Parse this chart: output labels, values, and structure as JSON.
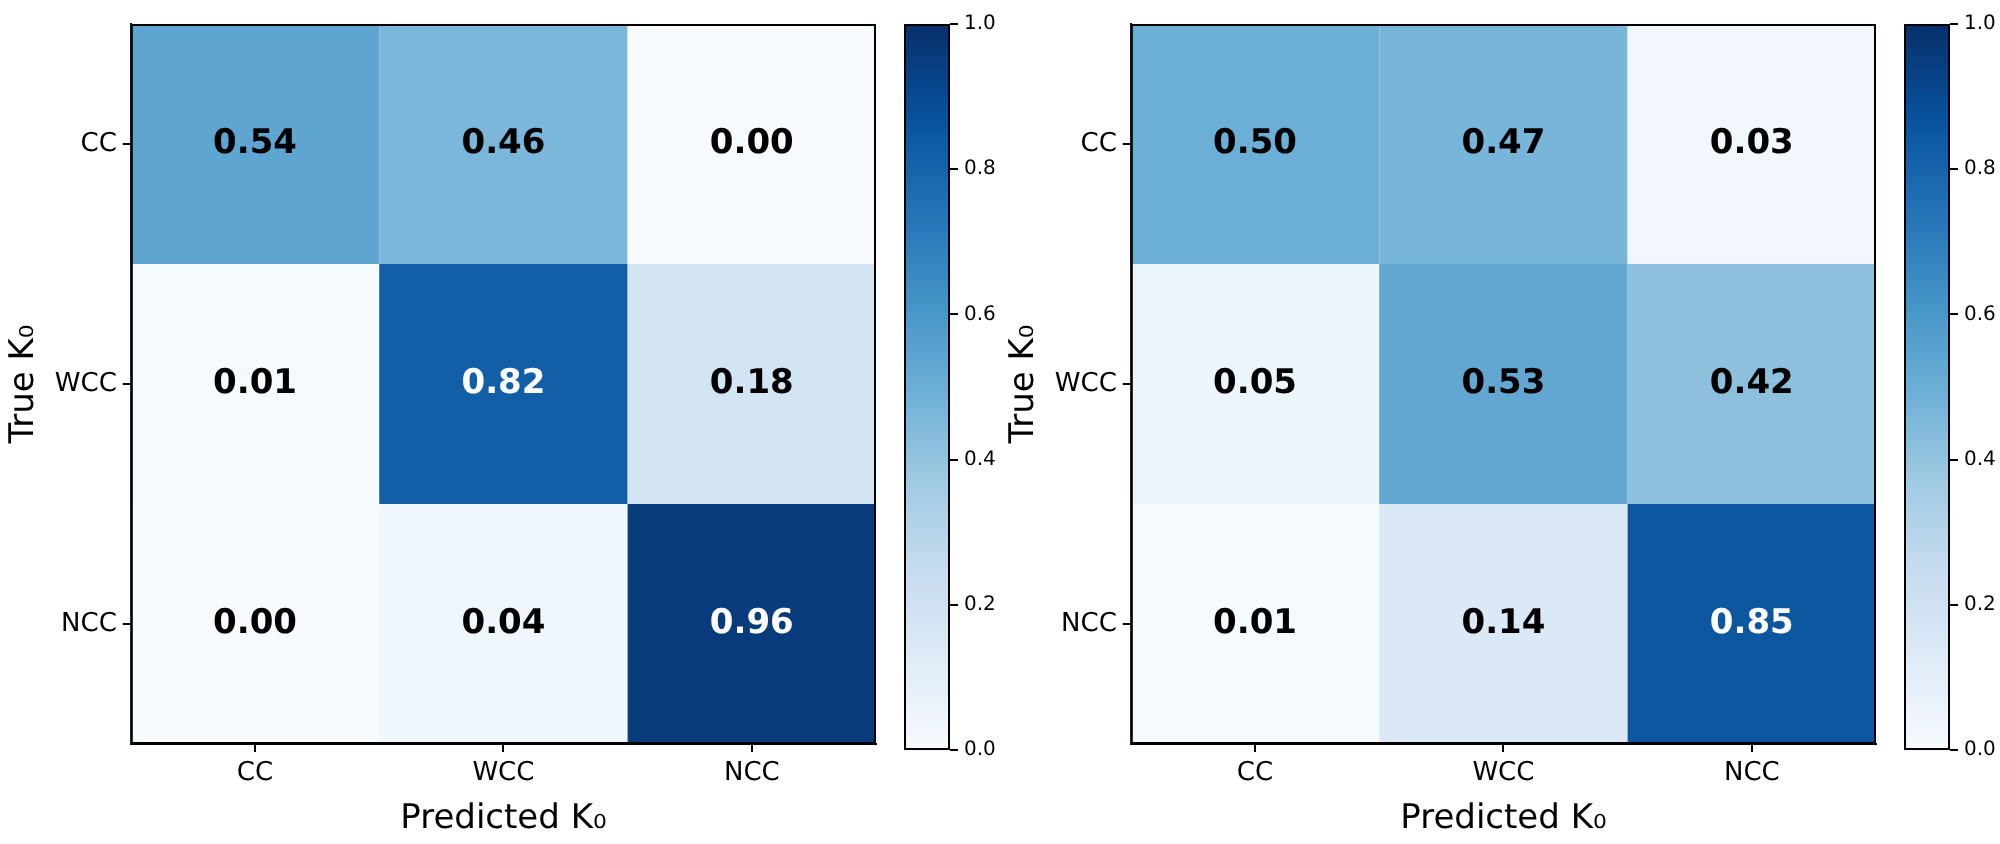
{
  "chart_data": [
    {
      "type": "heatmap",
      "xlabel": "Predicted K₀",
      "ylabel": "True K₀",
      "categories": [
        "CC",
        "WCC",
        "NCC"
      ],
      "y_categories": [
        "CC",
        "WCC",
        "NCC"
      ],
      "cells": [
        [
          0.54,
          0.46,
          0.0
        ],
        [
          0.01,
          0.82,
          0.18
        ],
        [
          0.0,
          0.04,
          0.96
        ]
      ],
      "cell_labels": [
        [
          "0.54",
          "0.46",
          "0.00"
        ],
        [
          "0.01",
          "0.82",
          "0.18"
        ],
        [
          "0.00",
          "0.04",
          "0.96"
        ]
      ],
      "clim": [
        0,
        1
      ],
      "cticks": [
        {
          "value": 0,
          "label": "0.0"
        },
        {
          "value": 0.2,
          "label": "0.2"
        },
        {
          "value": 0.4,
          "label": "0.4"
        },
        {
          "value": 0.6,
          "label": "0.6"
        },
        {
          "value": 0.8,
          "label": "0.8"
        },
        {
          "value": 1,
          "label": "1.0"
        }
      ]
    },
    {
      "type": "heatmap",
      "xlabel": "Predicted K₀",
      "ylabel": "True K₀",
      "categories": [
        "CC",
        "WCC",
        "NCC"
      ],
      "y_categories": [
        "CC",
        "WCC",
        "NCC"
      ],
      "cells": [
        [
          0.5,
          0.47,
          0.03
        ],
        [
          0.05,
          0.53,
          0.42
        ],
        [
          0.01,
          0.14,
          0.85
        ]
      ],
      "cell_labels": [
        [
          "0.50",
          "0.47",
          "0.03"
        ],
        [
          "0.05",
          "0.53",
          "0.42"
        ],
        [
          "0.01",
          "0.14",
          "0.85"
        ]
      ],
      "clim": [
        0,
        1
      ],
      "cticks": [
        {
          "value": 0,
          "label": "0.0"
        },
        {
          "value": 0.2,
          "label": "0.2"
        },
        {
          "value": 0.4,
          "label": "0.4"
        },
        {
          "value": 0.6,
          "label": "0.6"
        },
        {
          "value": 0.8,
          "label": "0.8"
        },
        {
          "value": 1,
          "label": "1.0"
        }
      ]
    }
  ]
}
